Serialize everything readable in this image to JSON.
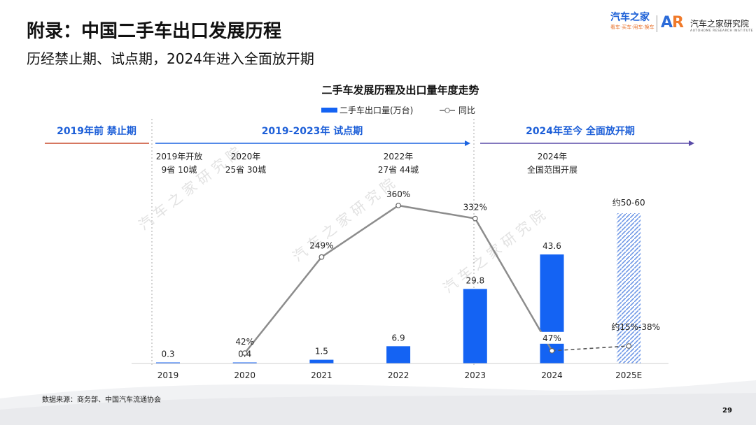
{
  "header": {
    "title": "附录：中国二手车出口发展历程",
    "subtitle": "历经禁止期、试点期，2024年进入全面放开期"
  },
  "brands": {
    "brand1_name": "汽车之家",
    "brand1_tagline": "看车·买车·用车·换车",
    "brand2_logo_a": "A",
    "brand2_logo_r": "R",
    "brand2_name": "汽车之家研究院",
    "brand2_en": "AUTOHOME RESEARCH INSTITUTE"
  },
  "footer": {
    "source": "数据来源：商务部、中国汽车流通协会",
    "page_number": "29"
  },
  "watermark": "汽 车 之 家 研 究 院",
  "phases": [
    {
      "label": "2019年前 禁止期"
    },
    {
      "label": "2019-2023年 试点期"
    },
    {
      "label": "2024年至今 全面放开期"
    }
  ],
  "milestones": [
    {
      "line1": "2019年开放",
      "line2": "9省 10城"
    },
    {
      "line1": "2020年",
      "line2": "25省 30城"
    },
    {
      "line1": "2022年",
      "line2": "27省 44城"
    },
    {
      "line1": "2024年",
      "line2": "全国范围开展"
    }
  ],
  "colors": {
    "bar": "#1463f3",
    "line": "#8c8c8c",
    "phase_text": "#1d5fd8",
    "bar_pattern": "#6f98e6"
  },
  "chart_data": {
    "type": "bar+line",
    "title": "二手车发展历程及出口量年度走势",
    "categories": [
      "2019",
      "2020",
      "2021",
      "2022",
      "2023",
      "2024",
      "2025E"
    ],
    "series": [
      {
        "name": "二手车出口量(万台)",
        "type": "bar",
        "values": [
          0.3,
          0.4,
          1.5,
          6.9,
          29.8,
          43.6,
          null
        ],
        "labels": [
          "0.3",
          "0.4",
          "1.5",
          "6.9",
          "29.8",
          "43.6",
          "约50-60"
        ],
        "estimate_range": [
          50,
          60
        ]
      },
      {
        "name": "同比",
        "type": "line",
        "values": [
          null,
          42,
          249,
          360,
          332,
          47,
          null
        ],
        "labels": [
          "",
          "42%",
          "249%",
          "360%",
          "332%",
          "47%",
          "约15%-38%"
        ],
        "estimate_label_index": 6
      }
    ],
    "legend_position": "top-center"
  }
}
